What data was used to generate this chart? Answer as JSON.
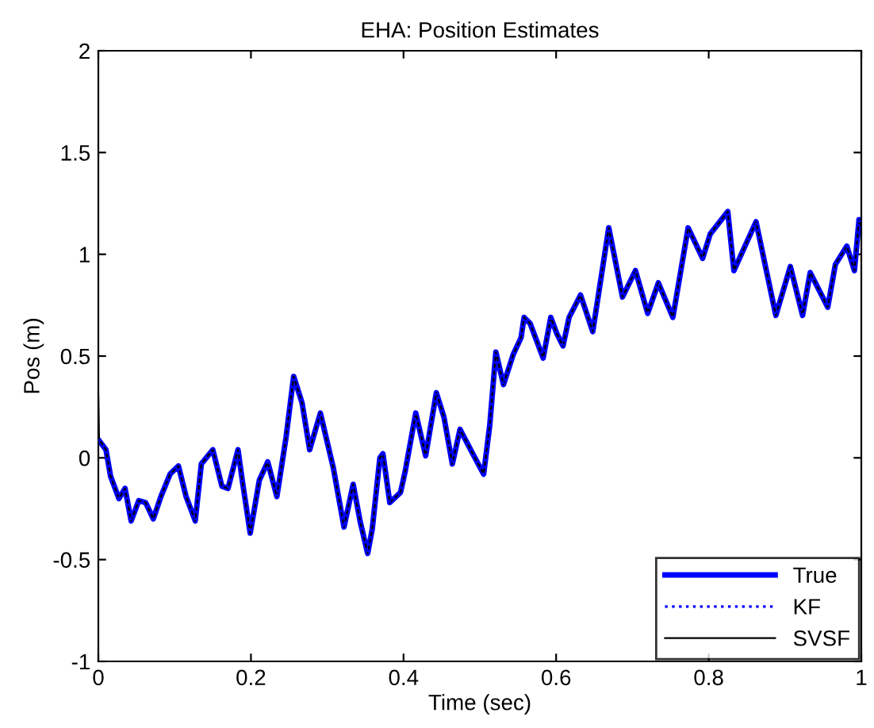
{
  "chart_data": {
    "type": "line",
    "title": "EHA: Position Estimates",
    "xlabel": "Time (sec)",
    "ylabel": "Pos (m)",
    "xlim": [
      0,
      1
    ],
    "ylim": [
      -1,
      2
    ],
    "xticks": [
      0,
      0.2,
      0.4,
      0.6,
      0.8,
      1
    ],
    "yticks": [
      -1,
      -0.5,
      0,
      0.5,
      1,
      1.5,
      2
    ],
    "grid": false,
    "legend": "bottom right",
    "series": [
      {
        "name": "True",
        "color": "#0000ff",
        "line_style": "solid",
        "x": [
          0,
          0.01,
          0.016,
          0.027,
          0.035,
          0.043,
          0.053,
          0.062,
          0.072,
          0.082,
          0.094,
          0.105,
          0.115,
          0.127,
          0.135,
          0.15,
          0.162,
          0.17,
          0.183,
          0.189,
          0.199,
          0.211,
          0.222,
          0.234,
          0.246,
          0.256,
          0.267,
          0.277,
          0.291,
          0.308,
          0.322,
          0.334,
          0.343,
          0.353,
          0.359,
          0.369,
          0.373,
          0.382,
          0.396,
          0.402,
          0.416,
          0.429,
          0.443,
          0.453,
          0.464,
          0.474,
          0.488,
          0.505,
          0.513,
          0.521,
          0.531,
          0.544,
          0.554,
          0.558,
          0.566,
          0.583,
          0.593,
          0.601,
          0.609,
          0.617,
          0.632,
          0.648,
          0.669,
          0.687,
          0.704,
          0.72,
          0.734,
          0.753,
          0.773,
          0.792,
          0.802,
          0.825,
          0.833,
          0.862,
          0.888,
          0.907,
          0.923,
          0.933,
          0.956,
          0.966,
          0.981,
          0.991,
          0.997,
          1.0
        ],
        "values": [
          0.09,
          0.04,
          -0.09,
          -0.2,
          -0.15,
          -0.31,
          -0.21,
          -0.22,
          -0.3,
          -0.19,
          -0.08,
          -0.04,
          -0.19,
          -0.31,
          -0.03,
          0.04,
          -0.14,
          -0.15,
          0.04,
          -0.12,
          -0.37,
          -0.11,
          -0.02,
          -0.19,
          0.1,
          0.4,
          0.27,
          0.04,
          0.22,
          -0.05,
          -0.34,
          -0.13,
          -0.31,
          -0.47,
          -0.35,
          0.0,
          0.02,
          -0.22,
          -0.17,
          -0.07,
          0.22,
          0.01,
          0.32,
          0.2,
          -0.03,
          0.14,
          0.04,
          -0.08,
          0.16,
          0.52,
          0.36,
          0.51,
          0.59,
          0.69,
          0.66,
          0.49,
          0.69,
          0.61,
          0.55,
          0.69,
          0.8,
          0.62,
          1.13,
          0.79,
          0.92,
          0.71,
          0.86,
          0.69,
          1.13,
          0.98,
          1.1,
          1.21,
          0.92,
          1.16,
          0.7,
          0.94,
          0.7,
          0.91,
          0.74,
          0.95,
          1.04,
          0.92,
          1.17,
          1.13
        ]
      },
      {
        "name": "KF",
        "color": "#0000ff",
        "line_style": "dotted",
        "x": [
          0,
          0.01,
          0.016,
          0.027,
          0.035,
          0.043,
          0.053,
          0.062,
          0.072,
          0.082,
          0.094,
          0.105,
          0.115,
          0.127,
          0.135,
          0.15,
          0.162,
          0.17,
          0.183,
          0.189,
          0.199,
          0.211,
          0.222,
          0.234,
          0.246,
          0.256,
          0.267,
          0.277,
          0.291,
          0.308,
          0.322,
          0.334,
          0.343,
          0.353,
          0.359,
          0.369,
          0.373,
          0.382,
          0.396,
          0.402,
          0.416,
          0.429,
          0.443,
          0.453,
          0.464,
          0.474,
          0.488,
          0.505,
          0.513,
          0.521,
          0.531,
          0.544,
          0.554,
          0.558,
          0.566,
          0.583,
          0.593,
          0.601,
          0.609,
          0.617,
          0.632,
          0.648,
          0.669,
          0.687,
          0.704,
          0.72,
          0.734,
          0.753,
          0.773,
          0.792,
          0.802,
          0.825,
          0.833,
          0.862,
          0.888,
          0.907,
          0.923,
          0.933,
          0.956,
          0.966,
          0.981,
          0.991,
          0.997,
          1.0
        ],
        "values": [
          0.09,
          0.04,
          -0.09,
          -0.2,
          -0.15,
          -0.31,
          -0.21,
          -0.22,
          -0.3,
          -0.19,
          -0.08,
          -0.04,
          -0.19,
          -0.31,
          -0.03,
          0.04,
          -0.14,
          -0.15,
          0.04,
          -0.12,
          -0.37,
          -0.11,
          -0.02,
          -0.19,
          0.1,
          0.4,
          0.27,
          0.04,
          0.22,
          -0.05,
          -0.34,
          -0.13,
          -0.31,
          -0.47,
          -0.35,
          0.0,
          0.02,
          -0.22,
          -0.17,
          -0.07,
          0.22,
          0.01,
          0.32,
          0.2,
          -0.03,
          0.14,
          0.04,
          -0.08,
          0.16,
          0.52,
          0.36,
          0.51,
          0.59,
          0.69,
          0.66,
          0.49,
          0.69,
          0.61,
          0.55,
          0.69,
          0.8,
          0.62,
          1.13,
          0.79,
          0.92,
          0.71,
          0.86,
          0.69,
          1.13,
          0.98,
          1.1,
          1.21,
          0.92,
          1.16,
          0.7,
          0.94,
          0.7,
          0.91,
          0.74,
          0.95,
          1.04,
          0.92,
          1.17,
          1.13
        ]
      },
      {
        "name": "SVSF",
        "color": "#000000",
        "line_style": "solid",
        "x": [
          0,
          0.001,
          0.01,
          0.016,
          0.027,
          0.035,
          0.043,
          0.053,
          0.062,
          0.072,
          0.082,
          0.094,
          0.105,
          0.115,
          0.127,
          0.135,
          0.15,
          0.162,
          0.17,
          0.183,
          0.189,
          0.199,
          0.211,
          0.222,
          0.234,
          0.246,
          0.256,
          0.267,
          0.277,
          0.291,
          0.308,
          0.322,
          0.334,
          0.343,
          0.353,
          0.359,
          0.369,
          0.373,
          0.382,
          0.396,
          0.402,
          0.416,
          0.429,
          0.443,
          0.453,
          0.464,
          0.474,
          0.488,
          0.505,
          0.513,
          0.521,
          0.531,
          0.544,
          0.554,
          0.558,
          0.566,
          0.583,
          0.593,
          0.601,
          0.609,
          0.617,
          0.632,
          0.648,
          0.669,
          0.687,
          0.704,
          0.72,
          0.734,
          0.753,
          0.773,
          0.792,
          0.802,
          0.825,
          0.833,
          0.862,
          0.888,
          0.907,
          0.923,
          0.933,
          0.956,
          0.966,
          0.981,
          0.991,
          0.997,
          1.0
        ],
        "values": [
          0.31,
          0.09,
          0.04,
          -0.09,
          -0.2,
          -0.15,
          -0.31,
          -0.21,
          -0.22,
          -0.3,
          -0.19,
          -0.08,
          -0.04,
          -0.19,
          -0.31,
          -0.03,
          0.04,
          -0.14,
          -0.15,
          0.04,
          -0.12,
          -0.37,
          -0.11,
          -0.02,
          -0.19,
          0.1,
          0.4,
          0.27,
          0.04,
          0.22,
          -0.05,
          -0.34,
          -0.13,
          -0.31,
          -0.47,
          -0.35,
          0.0,
          0.02,
          -0.22,
          -0.17,
          -0.07,
          0.22,
          0.01,
          0.32,
          0.2,
          -0.03,
          0.14,
          0.04,
          -0.08,
          0.16,
          0.52,
          0.36,
          0.51,
          0.59,
          0.69,
          0.66,
          0.49,
          0.69,
          0.61,
          0.55,
          0.69,
          0.8,
          0.62,
          1.13,
          0.79,
          0.92,
          0.71,
          0.86,
          0.69,
          1.13,
          0.98,
          1.1,
          1.21,
          0.92,
          1.16,
          0.7,
          0.94,
          0.7,
          0.91,
          0.74,
          0.95,
          1.04,
          0.92,
          1.17,
          1.13
        ]
      }
    ]
  }
}
